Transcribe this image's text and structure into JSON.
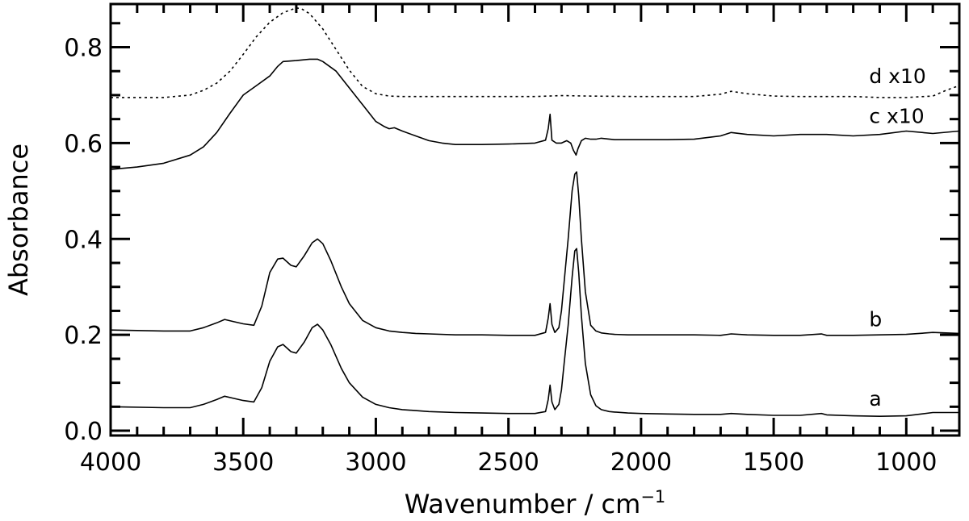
{
  "chart_data": {
    "type": "line",
    "xlabel": "Wavenumber / cm",
    "xlabel_superscript": "−1",
    "ylabel": "Absorbance",
    "xlim": [
      4000,
      800
    ],
    "ylim": [
      -0.01,
      0.89
    ],
    "x_ticks": [
      4000,
      3500,
      3000,
      2500,
      2000,
      1500,
      1000
    ],
    "x_tick_labels": [
      "4000",
      "3500",
      "3000",
      "2500",
      "2000",
      "1500",
      "1000"
    ],
    "y_ticks": [
      0.0,
      0.2,
      0.4,
      0.6,
      0.8
    ],
    "y_tick_labels": [
      "0.0",
      "0.2",
      "0.4",
      "0.6",
      "0.8"
    ],
    "grid": false,
    "legend": "none",
    "series": [
      {
        "name": "a",
        "line_style": "solid",
        "color": "#000000",
        "x": [
          4000,
          3800,
          3700,
          3650,
          3600,
          3570,
          3540,
          3500,
          3460,
          3430,
          3400,
          3370,
          3350,
          3320,
          3300,
          3270,
          3240,
          3220,
          3200,
          3170,
          3130,
          3100,
          3050,
          3000,
          2950,
          2900,
          2850,
          2800,
          2700,
          2600,
          2500,
          2400,
          2360,
          2350,
          2343,
          2336,
          2325,
          2310,
          2300,
          2290,
          2275,
          2260,
          2250,
          2243,
          2235,
          2225,
          2210,
          2190,
          2170,
          2150,
          2120,
          2100,
          2050,
          2000,
          1900,
          1800,
          1700,
          1660,
          1600,
          1500,
          1400,
          1320,
          1300,
          1200,
          1100,
          1000,
          900,
          800
        ],
        "y": [
          0.05,
          0.048,
          0.048,
          0.055,
          0.065,
          0.072,
          0.068,
          0.063,
          0.06,
          0.09,
          0.145,
          0.175,
          0.18,
          0.165,
          0.162,
          0.185,
          0.215,
          0.222,
          0.21,
          0.18,
          0.13,
          0.1,
          0.07,
          0.055,
          0.048,
          0.044,
          0.042,
          0.04,
          0.038,
          0.037,
          0.036,
          0.036,
          0.04,
          0.065,
          0.095,
          0.06,
          0.044,
          0.055,
          0.085,
          0.14,
          0.22,
          0.32,
          0.375,
          0.38,
          0.33,
          0.24,
          0.14,
          0.075,
          0.052,
          0.044,
          0.04,
          0.039,
          0.037,
          0.036,
          0.035,
          0.034,
          0.034,
          0.036,
          0.034,
          0.032,
          0.032,
          0.036,
          0.033,
          0.031,
          0.03,
          0.031,
          0.038,
          0.038
        ]
      },
      {
        "name": "b",
        "line_style": "solid",
        "color": "#000000",
        "x": [
          4000,
          3800,
          3700,
          3650,
          3600,
          3570,
          3540,
          3500,
          3460,
          3430,
          3400,
          3370,
          3350,
          3320,
          3300,
          3270,
          3240,
          3220,
          3200,
          3170,
          3130,
          3100,
          3050,
          3000,
          2950,
          2900,
          2850,
          2800,
          2700,
          2600,
          2500,
          2400,
          2360,
          2350,
          2343,
          2336,
          2325,
          2310,
          2300,
          2290,
          2275,
          2260,
          2250,
          2243,
          2235,
          2225,
          2210,
          2190,
          2170,
          2150,
          2120,
          2100,
          2050,
          2000,
          1900,
          1800,
          1700,
          1660,
          1600,
          1500,
          1400,
          1320,
          1300,
          1200,
          1100,
          1000,
          900,
          800
        ],
        "y": [
          0.21,
          0.208,
          0.208,
          0.215,
          0.225,
          0.232,
          0.228,
          0.223,
          0.22,
          0.26,
          0.33,
          0.358,
          0.36,
          0.345,
          0.342,
          0.365,
          0.392,
          0.4,
          0.39,
          0.355,
          0.3,
          0.265,
          0.23,
          0.215,
          0.208,
          0.205,
          0.203,
          0.202,
          0.2,
          0.2,
          0.199,
          0.199,
          0.205,
          0.235,
          0.265,
          0.222,
          0.205,
          0.215,
          0.25,
          0.31,
          0.4,
          0.5,
          0.535,
          0.54,
          0.49,
          0.4,
          0.29,
          0.22,
          0.208,
          0.204,
          0.202,
          0.201,
          0.2,
          0.2,
          0.2,
          0.2,
          0.199,
          0.202,
          0.2,
          0.199,
          0.199,
          0.202,
          0.199,
          0.199,
          0.2,
          0.201,
          0.205,
          0.203
        ]
      },
      {
        "name": "c",
        "label": "c x10",
        "line_style": "solid",
        "color": "#000000",
        "x": [
          4000,
          3900,
          3800,
          3700,
          3650,
          3600,
          3550,
          3500,
          3450,
          3400,
          3370,
          3350,
          3300,
          3250,
          3220,
          3200,
          3150,
          3100,
          3050,
          3000,
          2970,
          2950,
          2930,
          2900,
          2850,
          2800,
          2750,
          2700,
          2600,
          2500,
          2400,
          2360,
          2350,
          2343,
          2336,
          2320,
          2300,
          2280,
          2265,
          2255,
          2245,
          2238,
          2225,
          2210,
          2190,
          2170,
          2150,
          2100,
          2000,
          1900,
          1800,
          1700,
          1660,
          1600,
          1500,
          1400,
          1300,
          1200,
          1100,
          1000,
          900,
          800
        ],
        "y": [
          0.545,
          0.55,
          0.558,
          0.575,
          0.592,
          0.622,
          0.662,
          0.7,
          0.72,
          0.74,
          0.76,
          0.77,
          0.772,
          0.775,
          0.775,
          0.77,
          0.75,
          0.715,
          0.68,
          0.645,
          0.635,
          0.63,
          0.632,
          0.625,
          0.615,
          0.605,
          0.6,
          0.597,
          0.597,
          0.598,
          0.6,
          0.606,
          0.63,
          0.66,
          0.606,
          0.6,
          0.6,
          0.605,
          0.6,
          0.585,
          0.575,
          0.588,
          0.605,
          0.61,
          0.608,
          0.608,
          0.61,
          0.607,
          0.607,
          0.607,
          0.608,
          0.615,
          0.622,
          0.618,
          0.615,
          0.618,
          0.618,
          0.615,
          0.618,
          0.625,
          0.62,
          0.625
        ]
      },
      {
        "name": "d",
        "label": "d x10",
        "line_style": "dotted",
        "color": "#000000",
        "x": [
          4000,
          3900,
          3800,
          3700,
          3650,
          3600,
          3550,
          3500,
          3450,
          3400,
          3350,
          3300,
          3280,
          3250,
          3200,
          3150,
          3100,
          3050,
          3000,
          2950,
          2900,
          2800,
          2600,
          2400,
          2300,
          2200,
          2000,
          1800,
          1700,
          1660,
          1600,
          1500,
          1400,
          1300,
          1200,
          1100,
          1000,
          900,
          850,
          800
        ],
        "y": [
          0.695,
          0.695,
          0.695,
          0.7,
          0.71,
          0.725,
          0.75,
          0.785,
          0.822,
          0.852,
          0.872,
          0.882,
          0.88,
          0.87,
          0.838,
          0.795,
          0.752,
          0.718,
          0.703,
          0.698,
          0.697,
          0.697,
          0.697,
          0.697,
          0.699,
          0.698,
          0.697,
          0.697,
          0.702,
          0.708,
          0.703,
          0.698,
          0.697,
          0.697,
          0.697,
          0.695,
          0.695,
          0.698,
          0.71,
          0.72
        ]
      }
    ],
    "annotations": [
      {
        "name": "d",
        "text": "d  x10",
        "x": 1140,
        "y": 0.725
      },
      {
        "name": "c",
        "text": "c  x10",
        "x": 1140,
        "y": 0.642
      },
      {
        "name": "b",
        "text": "b",
        "x": 1140,
        "y": 0.218
      },
      {
        "name": "a",
        "text": "a",
        "x": 1140,
        "y": 0.052
      }
    ]
  }
}
